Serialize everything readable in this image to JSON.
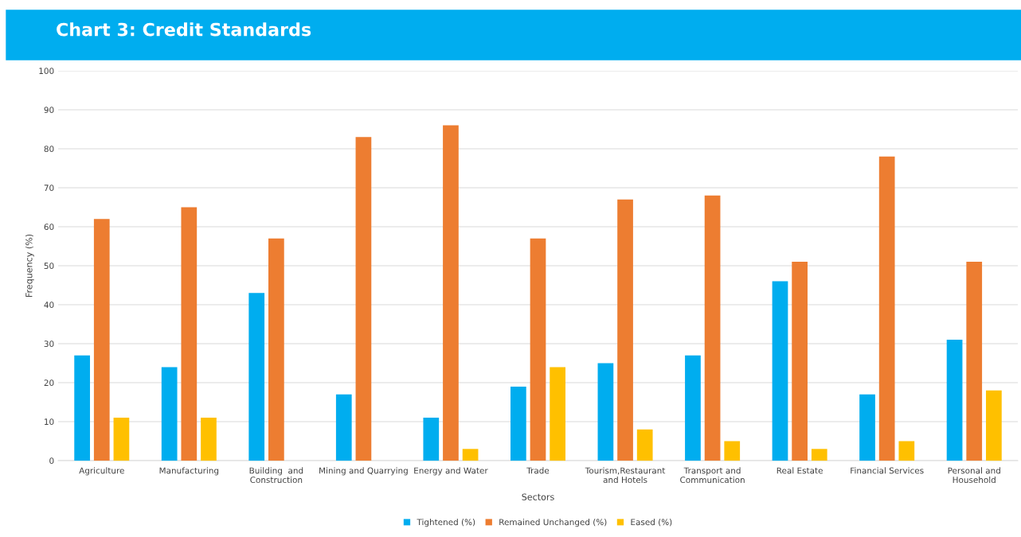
{
  "chart_data": {
    "type": "bar",
    "title": "Chart 3: Credit Standards",
    "xlabel": "Sectors",
    "ylabel": "Frequency (%)",
    "categories": [
      "Agriculture",
      "Manufacturing",
      "Building  and\nConstruction",
      "Mining and Quarrying",
      "Energy and Water",
      "Trade",
      "Tourism,Restaurant\nand Hotels",
      "Transport and\nCommunication",
      "Real Estate",
      "Financial Services",
      "Personal and\nHousehold"
    ],
    "series": [
      {
        "name": "Tightened (%)",
        "color": "#00adef",
        "values": [
          27,
          24,
          43,
          17,
          11,
          19,
          25,
          27,
          46,
          17,
          31
        ]
      },
      {
        "name": "Remained Unchanged (%)",
        "color": "#ed7d31",
        "values": [
          62,
          65,
          57,
          83,
          86,
          57,
          67,
          68,
          51,
          78,
          51
        ]
      },
      {
        "name": "Eased (%)",
        "color": "#ffc000",
        "values": [
          11,
          11,
          0,
          0,
          3,
          24,
          8,
          5,
          3,
          5,
          18
        ]
      }
    ],
    "ylim": [
      0,
      100
    ],
    "yticks": [
      0,
      10,
      20,
      30,
      40,
      50,
      60,
      70,
      80,
      90,
      100
    ],
    "grid": "y",
    "legend": "bottom"
  }
}
